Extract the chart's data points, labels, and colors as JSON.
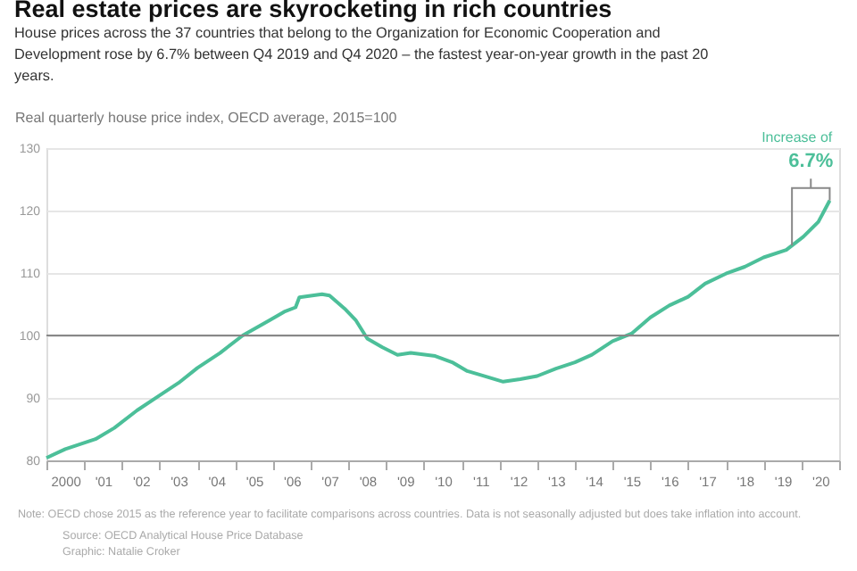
{
  "chart_data": {
    "type": "line",
    "title": "Real estate prices are skyrocketing in rich countries",
    "subtitle": "House prices across the 37 countries that belong to the Organization for Economic Cooperation and Development rose by 6.7% between Q4 2019 and Q4 2020 – the fastest year-on-year growth in the past 20 years.",
    "ylabel": "Real quarterly house price index, OECD average, 2015=100",
    "series": [
      {
        "color": "#4cbf99",
        "x": [
          1999.5,
          2000.0,
          2000.8,
          2001.3,
          2001.9,
          2002.5,
          2003.0,
          2003.5,
          2004.1,
          2004.7,
          2005.4,
          2005.8,
          2006.1,
          2006.2,
          2006.8,
          2007.0,
          2007.4,
          2007.7,
          2008.0,
          2008.4,
          2008.8,
          2009.15,
          2009.8,
          2010.25,
          2010.65,
          2011.05,
          2011.6,
          2012.05,
          2012.5,
          2013.0,
          2013.5,
          2013.95,
          2014.5,
          2015.0,
          2015.5,
          2016.0,
          2016.5,
          2016.95,
          2017.5,
          2018.0,
          2018.5,
          2019.1,
          2019.55,
          2019.95,
          2020.25
        ],
        "values": [
          80.4,
          81.8,
          83.4,
          85.2,
          88.0,
          90.4,
          92.4,
          94.8,
          97.2,
          100.0,
          102.4,
          103.8,
          104.5,
          106.1,
          106.6,
          106.4,
          104.3,
          102.4,
          99.5,
          98.1,
          96.9,
          97.2,
          96.7,
          95.7,
          94.3,
          93.6,
          92.6,
          93.0,
          93.5,
          94.7,
          95.7,
          96.9,
          99.1,
          100.3,
          102.9,
          104.8,
          106.2,
          108.3,
          109.9,
          111.0,
          112.5,
          113.7,
          115.8,
          118.2,
          121.6
        ]
      }
    ],
    "xlim": [
      1999.5,
      2020.5
    ],
    "xticks": [
      2000,
      {
        "value": 2001,
        "label": "'01"
      },
      {
        "value": 2002,
        "label": "'02"
      },
      {
        "value": 2003,
        "label": "'03"
      },
      {
        "value": 2004,
        "label": "'04"
      },
      {
        "value": 2005,
        "label": "'05"
      },
      {
        "value": 2006,
        "label": "'06"
      },
      {
        "value": 2007,
        "label": "'07"
      },
      {
        "value": 2008,
        "label": "'08"
      },
      {
        "value": 2009,
        "label": "'09"
      },
      {
        "value": 2010,
        "label": "'10"
      },
      {
        "value": 2011,
        "label": "'11"
      },
      {
        "value": 2012,
        "label": "'12"
      },
      {
        "value": 2013,
        "label": "'13"
      },
      {
        "value": 2014,
        "label": "'14"
      },
      {
        "value": 2015,
        "label": "'15"
      },
      {
        "value": 2016,
        "label": "'16"
      },
      {
        "value": 2017,
        "label": "'17"
      },
      {
        "value": 2018,
        "label": "'18"
      },
      {
        "value": 2019,
        "label": "'19"
      },
      {
        "value": 2020,
        "label": "'20"
      },
      {
        "value": 1999.5,
        "label": null
      },
      {
        "value": 2000.5,
        "label": null
      },
      {
        "value": 2001.5,
        "label": null
      },
      {
        "value": 2002.5,
        "label": null
      },
      {
        "value": 2003.5,
        "label": null
      },
      {
        "value": 2004.5,
        "label": null
      },
      {
        "value": 2005.5,
        "label": null
      },
      {
        "value": 2006.5,
        "label": null
      },
      {
        "value": 2007.5,
        "label": null
      },
      {
        "value": 2008.5,
        "label": null
      },
      {
        "value": 2009.5,
        "label": null
      },
      {
        "value": 2010.5,
        "label": null
      },
      {
        "value": 2011.5,
        "label": null
      },
      {
        "value": 2012.5,
        "label": null
      },
      {
        "value": 2013.5,
        "label": null
      },
      {
        "value": 2014.5,
        "label": null
      },
      {
        "value": 2015.5,
        "label": null
      },
      {
        "value": 2016.5,
        "label": null
      },
      {
        "value": 2017.5,
        "label": null
      },
      {
        "value": 2018.5,
        "label": null
      },
      {
        "value": 2019.5,
        "label": null
      },
      {
        "value": 2020.5,
        "label": null
      }
    ],
    "ylim": [
      80,
      130
    ],
    "yticks": [
      80,
      90,
      100,
      110,
      120,
      130
    ],
    "grid": "y",
    "legend": false,
    "marker": "none",
    "line_style": "solid",
    "ref_lines": [
      {
        "axis": "y",
        "value": 100,
        "color": "#888888"
      }
    ],
    "annotations": [
      {
        "text": "Increase of 6.7%",
        "x": 2020.25,
        "y": 121.6
      },
      "Note: OECD chose 2015 as the reference year to facilitate comparisons across countries. Data is not seasonally adjusted but does take inflation into account.",
      "Source: OECD Analytical House Price Database",
      "Graphic: Natalie Croker"
    ]
  }
}
